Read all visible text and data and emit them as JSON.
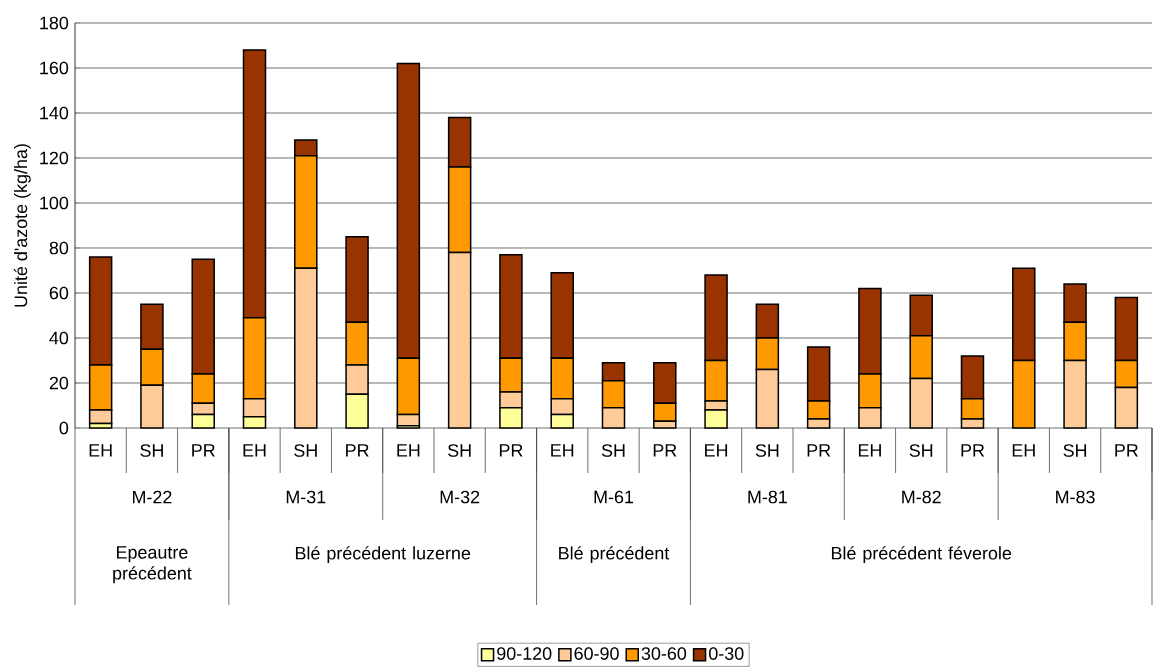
{
  "chart_data": {
    "type": "bar",
    "stacked": true,
    "ylabel": "Unité d'azote (kg/ha)",
    "categories": [
      "EH",
      "SH",
      "PR",
      "EH",
      "SH",
      "PR",
      "EH",
      "SH",
      "PR",
      "EH",
      "SH",
      "PR",
      "EH",
      "SH",
      "PR",
      "EH",
      "SH",
      "PR",
      "EH",
      "SH",
      "PR"
    ],
    "series": [
      {
        "name": "90-120",
        "color": "#ffff99",
        "values": [
          2,
          0,
          6,
          5,
          0,
          15,
          1,
          0,
          9,
          6,
          0,
          0,
          8,
          0,
          0,
          0,
          0,
          0,
          0,
          0,
          0
        ]
      },
      {
        "name": "60-90",
        "color": "#ffcc99",
        "values": [
          6,
          19,
          5,
          8,
          71,
          13,
          5,
          78,
          7,
          7,
          9,
          3,
          4,
          26,
          4,
          9,
          22,
          4,
          0,
          30,
          18
        ]
      },
      {
        "name": "30-60",
        "color": "#ff9900",
        "values": [
          20,
          16,
          13,
          36,
          50,
          19,
          25,
          38,
          15,
          18,
          12,
          8,
          18,
          14,
          8,
          15,
          19,
          9,
          30,
          17,
          12
        ]
      },
      {
        "name": "0-30",
        "color": "#993300",
        "values": [
          48,
          20,
          51,
          119,
          7,
          38,
          131,
          22,
          46,
          38,
          8,
          18,
          38,
          15,
          24,
          38,
          18,
          19,
          41,
          17,
          28
        ]
      }
    ],
    "annotations": [
      "M-22",
      "M-31",
      "M-32",
      "M-61",
      "M-81",
      "M-82",
      "M-83",
      "Epeautre précédent",
      "Blé précédent luzerne",
      "Blé précédent",
      "Blé précédent féverole"
    ],
    "ylim": [
      0,
      180
    ],
    "yticks": [
      0,
      20,
      40,
      60,
      80,
      100,
      120,
      140,
      160,
      180
    ],
    "grid": "y",
    "legend": "bottom"
  }
}
